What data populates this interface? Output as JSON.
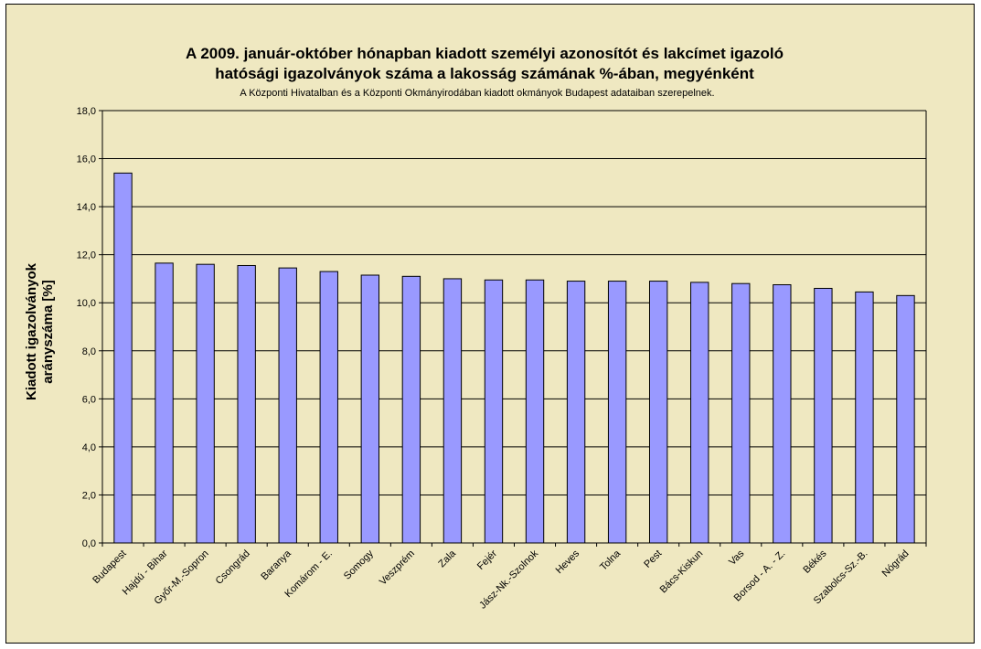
{
  "chart_data": {
    "type": "bar",
    "title_lines": [
      "A 2009. január-október hónapban kiadott személyi azonosítót és lakcímet igazoló",
      "hatósági igazolványok száma a lakosság  számának %-ában, megyénként"
    ],
    "subtitle": "A Központi Hivatalban és a Központi Okmányirodában kiadott okmányok Budapest adataiban szerepelnek.",
    "ylabel_lines": [
      "Kiadott igazolványok",
      "arányszáma [%]"
    ],
    "xlabel": "",
    "ylim": [
      0,
      18
    ],
    "y_ticks": [
      "0,0",
      "2,0",
      "4,0",
      "6,0",
      "8,0",
      "10,0",
      "12,0",
      "14,0",
      "16,0",
      "18,0"
    ],
    "grid": "horizontal",
    "legend": "none",
    "colors": {
      "bar_fill": "#9999ff",
      "bar_stroke": "#000000",
      "plot_background": "#efe8c1",
      "gridline": "#000000"
    },
    "categories": [
      "Budapest",
      "Hajdú - Bihar",
      "Győr-M.-Sopron",
      "Csongrád",
      "Baranya",
      "Komárom - E.",
      "Somogy",
      "Veszprém",
      "Zala",
      "Fejér",
      "Jász-Nk.-Szolnok",
      "Heves",
      "Tolna",
      "Pest",
      "Bács-Kiskun",
      "Vas",
      "Borsod - A. - Z.",
      "Békés",
      "Szabolcs-Sz.-B.",
      "Nógrád"
    ],
    "values": [
      15.4,
      11.65,
      11.6,
      11.55,
      11.45,
      11.3,
      11.15,
      11.1,
      11.0,
      10.95,
      10.95,
      10.9,
      10.9,
      10.9,
      10.85,
      10.8,
      10.75,
      10.6,
      10.45,
      10.3
    ]
  }
}
